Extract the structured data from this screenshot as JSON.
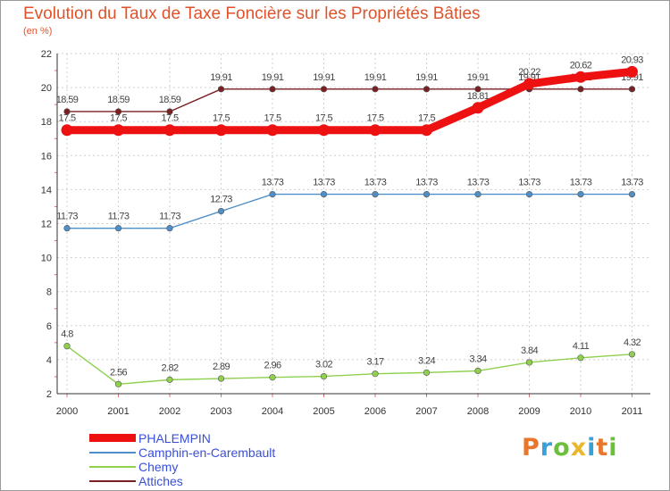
{
  "title": "Evolution du Taux de Taxe Foncière sur les Propriétés Bâties",
  "subtitle": "(en %)",
  "brand": {
    "letters": [
      "P",
      "r",
      "o",
      "x",
      "i",
      "t",
      "i"
    ],
    "colors": [
      "#e8762c",
      "#3aa0d8",
      "#6cbf3a",
      "#e8b82c",
      "#3aa0d8",
      "#e8762c",
      "#6cbf3a"
    ]
  },
  "chart_data": {
    "type": "line",
    "title": "Evolution du Taux de Taxe Foncière sur les Propriétés Bâties",
    "ylabel": "(en %)",
    "xlabel": "",
    "ylim": [
      2,
      22
    ],
    "yticks": [
      "2",
      "4",
      "6",
      "8",
      "10",
      "12",
      "14",
      "16",
      "18",
      "20",
      "22"
    ],
    "categories": [
      "2000",
      "2001",
      "2002",
      "2003",
      "2004",
      "2005",
      "2006",
      "2007",
      "2008",
      "2009",
      "2010",
      "2011"
    ],
    "grid": true,
    "series": [
      {
        "name": "Attiches",
        "color": "#7a1f22",
        "thick": false,
        "values": [
          18.59,
          18.59,
          18.59,
          19.91,
          19.91,
          19.91,
          19.91,
          19.91,
          19.91,
          19.91,
          19.91,
          19.91
        ],
        "labels": [
          "18.59",
          "18.59",
          "18.59",
          "19.91",
          "19.91",
          "19.91",
          "19.91",
          "19.91",
          "19.91",
          "19.91",
          "19.91",
          "19.91"
        ]
      },
      {
        "name": "Camphin-en-Carembault",
        "color": "#4f8fc8",
        "thick": false,
        "values": [
          11.73,
          11.73,
          11.73,
          12.73,
          13.73,
          13.73,
          13.73,
          13.73,
          13.73,
          13.73,
          13.73,
          13.73
        ],
        "labels": [
          "11.73",
          "11.73",
          "11.73",
          "12.73",
          "13.73",
          "13.73",
          "13.73",
          "13.73",
          "13.73",
          "13.73",
          "13.73",
          "13.73"
        ]
      },
      {
        "name": "Chemy",
        "color": "#8fd04f",
        "thick": false,
        "values": [
          4.8,
          2.56,
          2.82,
          2.89,
          2.96,
          3.02,
          3.17,
          3.24,
          3.34,
          3.84,
          4.11,
          4.32
        ],
        "labels": [
          "4.8",
          "2.56",
          "2.82",
          "2.89",
          "2.96",
          "3.02",
          "3.17",
          "3.24",
          "3.34",
          "3.84",
          "4.11",
          "4.32"
        ]
      },
      {
        "name": "PHALEMPIN",
        "color": "#ee1111",
        "thick": true,
        "values": [
          17.5,
          17.5,
          17.5,
          17.5,
          17.5,
          17.5,
          17.5,
          17.5,
          18.81,
          20.22,
          20.62,
          20.93
        ],
        "labels": [
          "17.5",
          "17.5",
          "17.5",
          "17.5",
          "17.5",
          "17.5",
          "17.5",
          "17.5",
          "18.81",
          "20.22",
          "20.62",
          "20.93"
        ]
      }
    ],
    "legend": [
      "PHALEMPIN",
      "Camphin-en-Carembault",
      "Chemy",
      "Attiches"
    ]
  }
}
